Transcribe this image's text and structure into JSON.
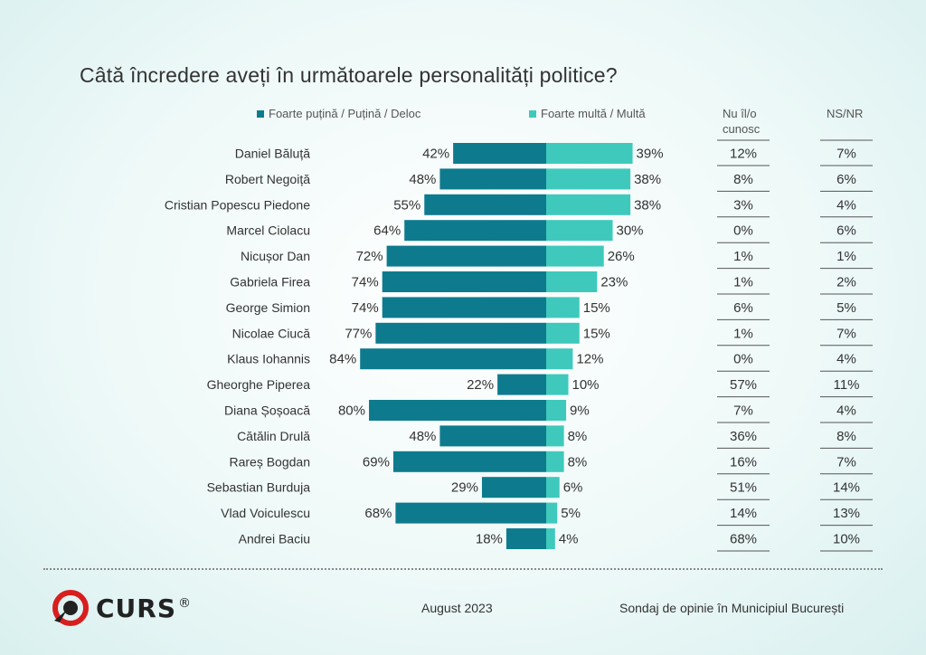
{
  "title": "Câtă încredere aveți în următoarele personalități politice?",
  "colors": {
    "low": "#0d7b8d",
    "high": "#3ec9bc",
    "text": "#333333"
  },
  "legend": {
    "low_label": "Foarte puțină / Puțină / Deloc",
    "high_label": "Foarte multă / Multă"
  },
  "columns": {
    "unknown_label": "Nu îl/o cunosc",
    "nsnr_label": "NS/NR"
  },
  "chart_data": {
    "type": "bar",
    "categories": [
      "Daniel Băluță",
      "Robert Negoiță",
      "Cristian Popescu Piedone",
      "Marcel Ciolacu",
      "Nicușor Dan",
      "Gabriela Firea",
      "George Simion",
      "Nicolae Ciucă",
      "Klaus Iohannis",
      "Gheorghe Piperea",
      "Diana Șoșoacă",
      "Cătălin Drulă",
      "Rareș Bogdan",
      "Sebastian Burduja",
      "Vlad Voiculescu",
      "Andrei Baciu"
    ],
    "series": [
      {
        "name": "Foarte puțină / Puțină / Deloc",
        "values": [
          42,
          48,
          55,
          64,
          72,
          74,
          74,
          77,
          84,
          22,
          80,
          48,
          69,
          29,
          68,
          18
        ]
      },
      {
        "name": "Foarte multă / Multă",
        "values": [
          39,
          38,
          38,
          30,
          26,
          23,
          15,
          15,
          12,
          10,
          9,
          8,
          8,
          6,
          5,
          4
        ]
      },
      {
        "name": "Nu îl/o cunosc",
        "values": [
          12,
          8,
          3,
          0,
          1,
          1,
          6,
          1,
          0,
          57,
          7,
          36,
          16,
          51,
          14,
          68
        ]
      },
      {
        "name": "NS/NR",
        "values": [
          7,
          6,
          4,
          6,
          1,
          2,
          5,
          7,
          4,
          11,
          4,
          8,
          7,
          14,
          13,
          10
        ]
      }
    ],
    "unit": "%"
  },
  "footer": {
    "logo_text": "CURS",
    "logo_mark": "®",
    "date": "August 2023",
    "source": "Sondaj de opinie în Municipiul București"
  }
}
